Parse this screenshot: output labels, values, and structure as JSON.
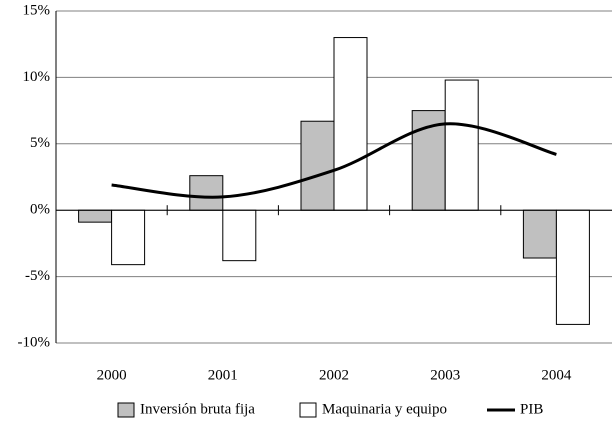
{
  "chart_data": {
    "type": "bar-line",
    "categories": [
      "2000",
      "2001",
      "2002",
      "2003",
      "2004"
    ],
    "series": [
      {
        "name": "Inversión bruta fija",
        "type": "bar",
        "color": "#c0c0c0",
        "values": [
          -0.9,
          2.6,
          6.7,
          7.5,
          -3.6
        ]
      },
      {
        "name": "Maquinaria y equipo",
        "type": "bar",
        "color": "#ffffff",
        "values": [
          -4.1,
          -3.8,
          13.0,
          9.8,
          -8.6
        ]
      },
      {
        "name": "PIB",
        "type": "line",
        "color": "#000000",
        "values": [
          1.9,
          1.0,
          3.0,
          6.5,
          4.2
        ]
      }
    ],
    "ylim": [
      -10,
      15
    ],
    "yticks": [
      {
        "value": -10,
        "label": "-10%"
      },
      {
        "value": -5,
        "label": "-5%"
      },
      {
        "value": 0,
        "label": "0%"
      },
      {
        "value": 5,
        "label": "5%"
      },
      {
        "value": 10,
        "label": "10%"
      },
      {
        "value": 15,
        "label": "15%"
      }
    ],
    "grid": true,
    "legend": "bottom"
  }
}
